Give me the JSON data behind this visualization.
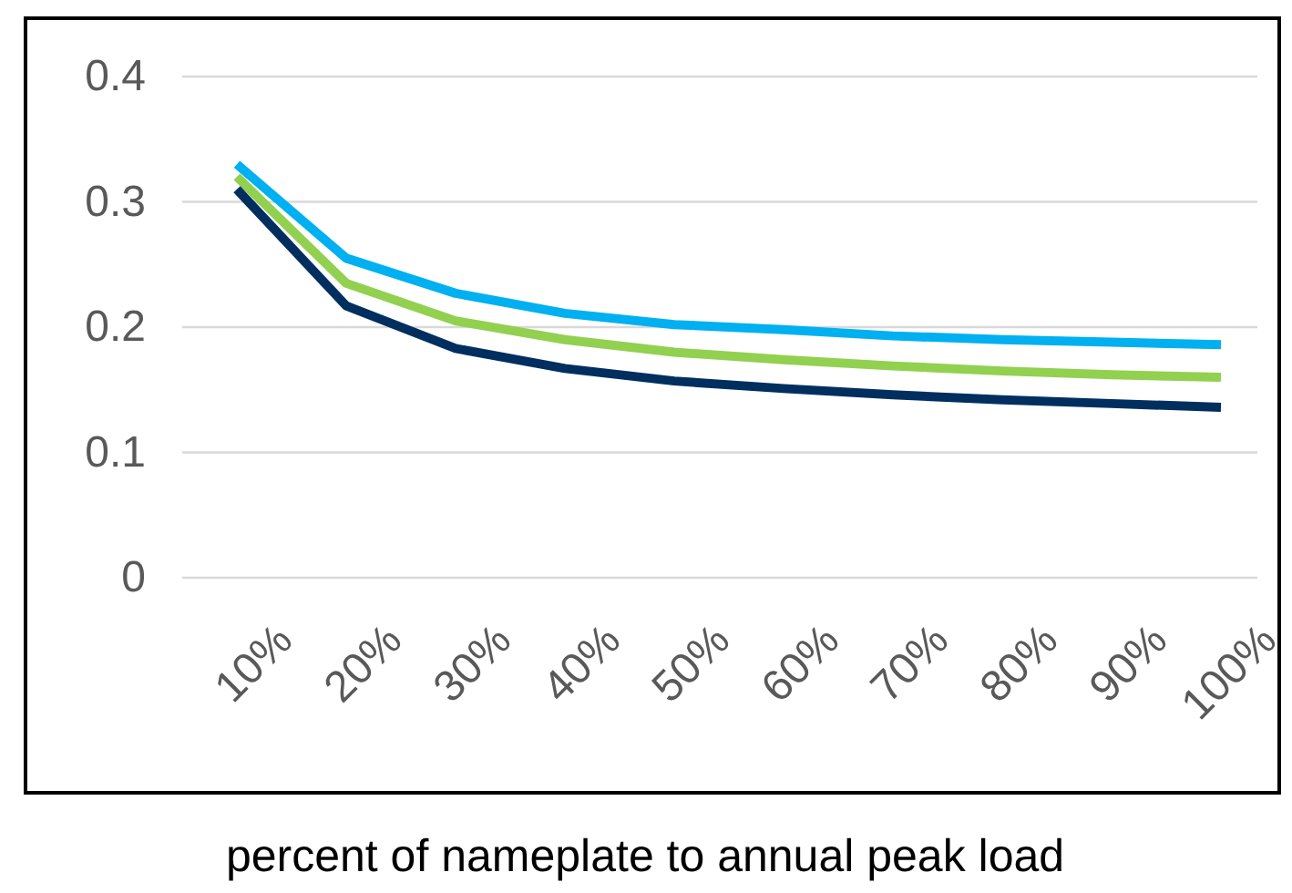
{
  "chart_data": {
    "type": "line",
    "xlabel": "percent of nameplate to annual peak load",
    "categories": [
      "10%",
      "20%",
      "30%",
      "40%",
      "50%",
      "60%",
      "70%",
      "80%",
      "90%",
      "100%"
    ],
    "series": [
      {
        "color": "#00b0f0",
        "values": [
          0.33,
          0.255,
          0.227,
          0.211,
          0.202,
          0.198,
          0.193,
          0.19,
          0.188,
          0.186
        ]
      },
      {
        "color": "#92d050",
        "values": [
          0.32,
          0.235,
          0.205,
          0.19,
          0.18,
          0.174,
          0.169,
          0.165,
          0.162,
          0.16
        ]
      },
      {
        "color": "#002f5f",
        "values": [
          0.31,
          0.217,
          0.183,
          0.167,
          0.157,
          0.151,
          0.146,
          0.142,
          0.139,
          0.136
        ]
      }
    ],
    "ylim": [
      0,
      0.4
    ],
    "yticks": [
      {
        "value": 0,
        "label": "0"
      },
      0.1,
      0.2,
      0.3,
      0.4
    ],
    "grid": "y",
    "marker": "none",
    "line_style": "solid"
  }
}
